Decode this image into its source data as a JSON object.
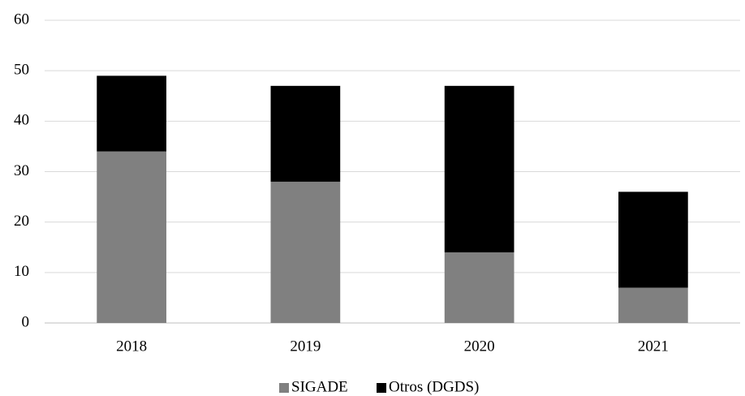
{
  "chart_data": {
    "type": "stacked_bar",
    "categories": [
      "2018",
      "2019",
      "2020",
      "2021"
    ],
    "series": [
      {
        "name": "SIGADE",
        "color": "#808080",
        "values": [
          34,
          28,
          14,
          7
        ]
      },
      {
        "name": "Otros (DGDS)",
        "color": "#000000",
        "values": [
          15,
          19,
          33,
          19
        ]
      }
    ],
    "ylim": [
      0,
      60
    ],
    "yticks": [
      0,
      10,
      20,
      30,
      40,
      50,
      60
    ],
    "grid": true,
    "legend": "bottom"
  }
}
